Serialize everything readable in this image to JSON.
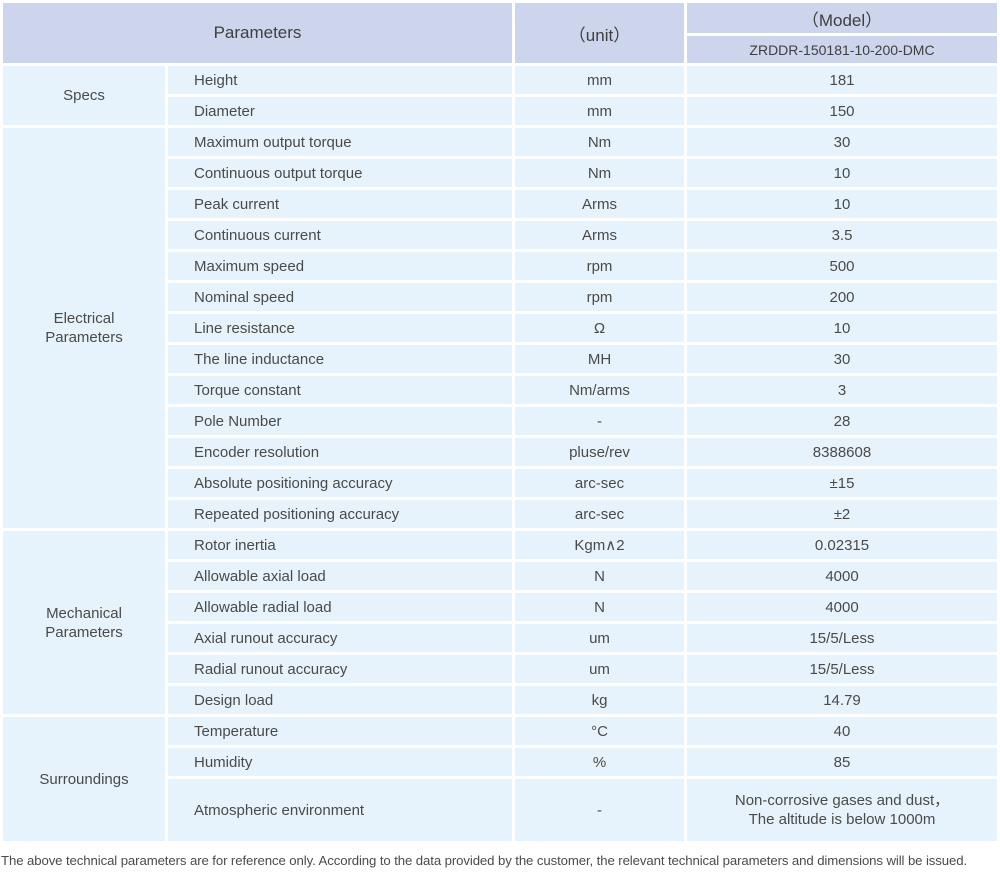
{
  "colors": {
    "header_bg": "#cdd5ec",
    "row_bg": "#e7f3fc",
    "header_text": "#3f3f3f",
    "body_text": "#4a4a4a",
    "footnote_text": "#4b4b4b"
  },
  "table": {
    "header": {
      "parameters_label": "Parameters",
      "unit_label": "（unit）",
      "model_label": "（Model）",
      "model_value": "ZRDDR-150181-10-200-DMC"
    },
    "sections": [
      {
        "category_lines": [
          "Specs"
        ],
        "rows": [
          {
            "parameter": "Height",
            "unit": "mm",
            "value": "181"
          },
          {
            "parameter": "Diameter",
            "unit": "mm",
            "value": "150"
          }
        ]
      },
      {
        "category_lines": [
          "Electrical",
          "Parameters"
        ],
        "rows": [
          {
            "parameter": "Maximum output torque",
            "unit": "Nm",
            "value": "30"
          },
          {
            "parameter": "Continuous output torque",
            "unit": "Nm",
            "value": "10"
          },
          {
            "parameter": "Peak current",
            "unit": "Arms",
            "value": "10"
          },
          {
            "parameter": "Continuous current",
            "unit": "Arms",
            "value": "3.5"
          },
          {
            "parameter": "Maximum speed",
            "unit": "rpm",
            "value": "500"
          },
          {
            "parameter": "Nominal speed",
            "unit": "rpm",
            "value": "200"
          },
          {
            "parameter": "Line resistance",
            "unit": "Ω",
            "value": "10"
          },
          {
            "parameter": "The line inductance",
            "unit": "MH",
            "value": "30"
          },
          {
            "parameter": "Torque constant",
            "unit": "Nm/arms",
            "value": "3"
          },
          {
            "parameter": "Pole Number",
            "unit": "-",
            "value": "28"
          },
          {
            "parameter": "Encoder resolution",
            "unit": "pluse/rev",
            "value": "8388608"
          },
          {
            "parameter": "Absolute positioning accuracy",
            "unit": "arc-sec",
            "value": "±15"
          },
          {
            "parameter": "Repeated positioning accuracy",
            "unit": "arc-sec",
            "value": "±2"
          }
        ]
      },
      {
        "category_lines": [
          "Mechanical",
          "Parameters"
        ],
        "rows": [
          {
            "parameter": "Rotor inertia",
            "unit": "Kgm∧2",
            "value": "0.02315"
          },
          {
            "parameter": "Allowable axial load",
            "unit": "N",
            "value": "4000"
          },
          {
            "parameter": "Allowable radial load",
            "unit": "N",
            "value": "4000"
          },
          {
            "parameter": "Axial runout accuracy",
            "unit": "um",
            "value": "15/5/Less"
          },
          {
            "parameter": "Radial runout accuracy",
            "unit": "um",
            "value": "15/5/Less"
          },
          {
            "parameter": "Design load",
            "unit": "kg",
            "value": "14.79"
          }
        ]
      },
      {
        "category_lines": [
          "Surroundings"
        ],
        "rows": [
          {
            "parameter": "Temperature",
            "unit": "°C",
            "value": "40"
          },
          {
            "parameter": "Humidity",
            "unit": "%",
            "value": "85"
          },
          {
            "parameter": "Atmospheric environment",
            "unit": "-",
            "value_lines": [
              "Non-corrosive gases and dust，",
              "The altitude is below 1000m"
            ]
          }
        ]
      }
    ]
  },
  "footer_note": "The above technical parameters are for reference only. According to the data provided by the customer, the relevant technical parameters and dimensions will be issued."
}
